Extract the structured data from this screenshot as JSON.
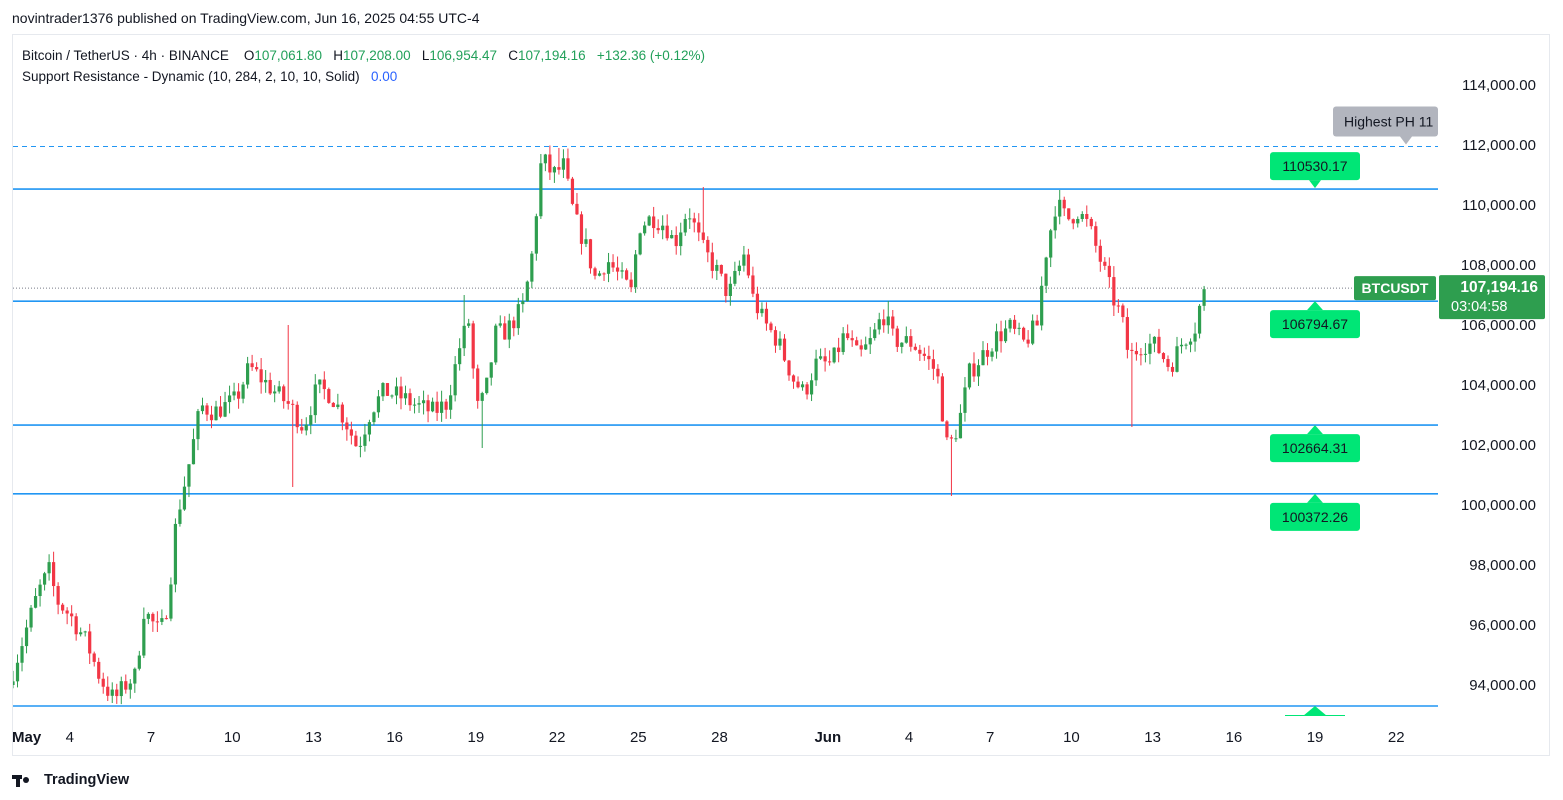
{
  "header": {
    "published": "novintrader1376 published on TradingView.com, Jun 16, 2025 04:55 UTC-4"
  },
  "legend": {
    "symbol": "Bitcoin / TetherUS · 4h · BINANCE",
    "open_label": "O",
    "open": "107,061.80",
    "high_label": "H",
    "high": "107,208.00",
    "low_label": "L",
    "low": "106,954.47",
    "close_label": "C",
    "close": "107,194.16",
    "change": "+132.36 (+0.12%)",
    "indicator": "Support Resistance - Dynamic (10, 284, 2, 10, 10, Solid)",
    "indicator_value": "0.00"
  },
  "price_badge": {
    "ticker": "BTCUSDT",
    "price": "107,194.16",
    "countdown": "03:04:58"
  },
  "highest_ph_label": "Highest PH 11",
  "footer": {
    "brand": "TradingView"
  },
  "colors": {
    "up": "#089981",
    "up_body": "#2e9e4f",
    "down": "#f23645",
    "level": "#2196f3",
    "label_bg": "#00e676",
    "badge": "#2e9e4f",
    "ph_gray": "#b2b5be"
  },
  "chart_data": {
    "type": "candlestick",
    "symbol": "BTCUSDT",
    "timeframe": "4h",
    "y_axis": {
      "min": 93000,
      "max": 115000,
      "ticks": [
        94000,
        96000,
        98000,
        100000,
        102000,
        104000,
        106000,
        108000,
        110000,
        112000,
        114000
      ],
      "tick_labels": [
        "94,000.00",
        "96,000.00",
        "98,000.00",
        "100,000.00",
        "102,000.00",
        "104,000.00",
        "106,000.00",
        "108,000.00",
        "110,000.00",
        "112,000.00",
        "114,000.00"
      ]
    },
    "x_axis": {
      "start_day": 1.9,
      "end_day": 52.8,
      "tick_days": [
        1.9,
        4,
        7,
        10,
        13,
        16,
        19,
        22,
        25,
        28,
        32,
        35,
        38,
        41,
        44,
        47,
        50,
        53
      ],
      "tick_labels": [
        "May",
        "4",
        "7",
        "10",
        "13",
        "16",
        "19",
        "22",
        "25",
        "28",
        "Jun",
        "4",
        "7",
        "10",
        "13",
        "16",
        "19",
        "22"
      ]
    },
    "levels": [
      {
        "value": 110530.17,
        "label": "110530.17"
      },
      {
        "value": 106794.67,
        "label": "106794.67"
      },
      {
        "value": 102664.31,
        "label": "102664.31"
      },
      {
        "value": 100372.26,
        "label": "100372.26"
      },
      {
        "value": 93300,
        "label": ""
      }
    ],
    "highest_ph": 111950,
    "last_price": 107194.16,
    "path": [
      [
        1.9,
        94000
      ],
      [
        2.5,
        95700
      ],
      [
        3.0,
        97100
      ],
      [
        3.4,
        97800
      ],
      [
        3.7,
        96800
      ],
      [
        4.2,
        96300
      ],
      [
        4.8,
        95400
      ],
      [
        5.3,
        94200
      ],
      [
        5.8,
        93500
      ],
      [
        6.3,
        94100
      ],
      [
        6.6,
        94300
      ],
      [
        6.9,
        96500
      ],
      [
        7.5,
        95700
      ],
      [
        7.8,
        96800
      ],
      [
        8.1,
        99500
      ],
      [
        8.6,
        101500
      ],
      [
        9.0,
        103300
      ],
      [
        9.5,
        103100
      ],
      [
        10.3,
        103500
      ],
      [
        10.8,
        104600
      ],
      [
        11.6,
        103900
      ],
      [
        12.3,
        103300
      ],
      [
        12.8,
        102600
      ],
      [
        13.3,
        103900
      ],
      [
        13.8,
        103700
      ],
      [
        14.3,
        102900
      ],
      [
        14.8,
        101900
      ],
      [
        15.3,
        103200
      ],
      [
        15.8,
        103800
      ],
      [
        16.4,
        103600
      ],
      [
        17.0,
        103300
      ],
      [
        17.6,
        103100
      ],
      [
        18.1,
        103400
      ],
      [
        18.6,
        105400
      ],
      [
        18.9,
        106100
      ],
      [
        19.2,
        103200
      ],
      [
        19.5,
        103600
      ],
      [
        19.9,
        105700
      ],
      [
        20.3,
        105800
      ],
      [
        20.9,
        106600
      ],
      [
        21.2,
        108000
      ],
      [
        21.6,
        111600
      ],
      [
        22.0,
        111000
      ],
      [
        22.4,
        111300
      ],
      [
        22.8,
        109600
      ],
      [
        23.2,
        108700
      ],
      [
        23.6,
        107500
      ],
      [
        24.0,
        108200
      ],
      [
        24.4,
        107700
      ],
      [
        24.9,
        107100
      ],
      [
        25.2,
        109300
      ],
      [
        25.7,
        109600
      ],
      [
        26.2,
        109300
      ],
      [
        26.5,
        108700
      ],
      [
        27.0,
        109900
      ],
      [
        27.5,
        108600
      ],
      [
        28.0,
        107900
      ],
      [
        28.5,
        107000
      ],
      [
        29.1,
        108400
      ],
      [
        29.4,
        106900
      ],
      [
        29.8,
        106100
      ],
      [
        30.3,
        105500
      ],
      [
        30.9,
        104200
      ],
      [
        31.3,
        103700
      ],
      [
        31.7,
        104700
      ],
      [
        32.3,
        104700
      ],
      [
        32.8,
        105700
      ],
      [
        33.3,
        104900
      ],
      [
        33.8,
        105500
      ],
      [
        34.2,
        106400
      ],
      [
        34.6,
        105500
      ],
      [
        35.3,
        105400
      ],
      [
        35.8,
        104900
      ],
      [
        36.2,
        104400
      ],
      [
        36.6,
        101800
      ],
      [
        37.0,
        102700
      ],
      [
        37.4,
        104400
      ],
      [
        37.8,
        104900
      ],
      [
        38.4,
        105600
      ],
      [
        38.9,
        105900
      ],
      [
        39.4,
        105400
      ],
      [
        39.9,
        106000
      ],
      [
        40.2,
        108300
      ],
      [
        40.6,
        110100
      ],
      [
        41.0,
        109500
      ],
      [
        41.4,
        109800
      ],
      [
        41.8,
        109300
      ],
      [
        42.3,
        108000
      ],
      [
        42.7,
        106900
      ],
      [
        43.0,
        106300
      ],
      [
        43.3,
        104900
      ],
      [
        43.8,
        105400
      ],
      [
        44.3,
        105300
      ],
      [
        44.8,
        104600
      ],
      [
        45.3,
        105500
      ],
      [
        45.8,
        106000
      ],
      [
        46.0,
        107194.16
      ]
    ],
    "wicks": [
      {
        "day": 3.4,
        "high": 97900
      },
      {
        "day": 5.5,
        "low": 93400
      },
      {
        "day": 12.2,
        "low": 100600
      },
      {
        "day": 12.1,
        "high": 106000
      },
      {
        "day": 18.6,
        "high": 107000
      },
      {
        "day": 19.3,
        "low": 101900
      },
      {
        "day": 22.0,
        "high": 111900
      },
      {
        "day": 27.4,
        "high": 110600
      },
      {
        "day": 36.6,
        "low": 100300
      },
      {
        "day": 43.3,
        "low": 102600
      },
      {
        "day": 40.6,
        "high": 110500
      },
      {
        "day": 34.2,
        "high": 106800
      }
    ]
  }
}
